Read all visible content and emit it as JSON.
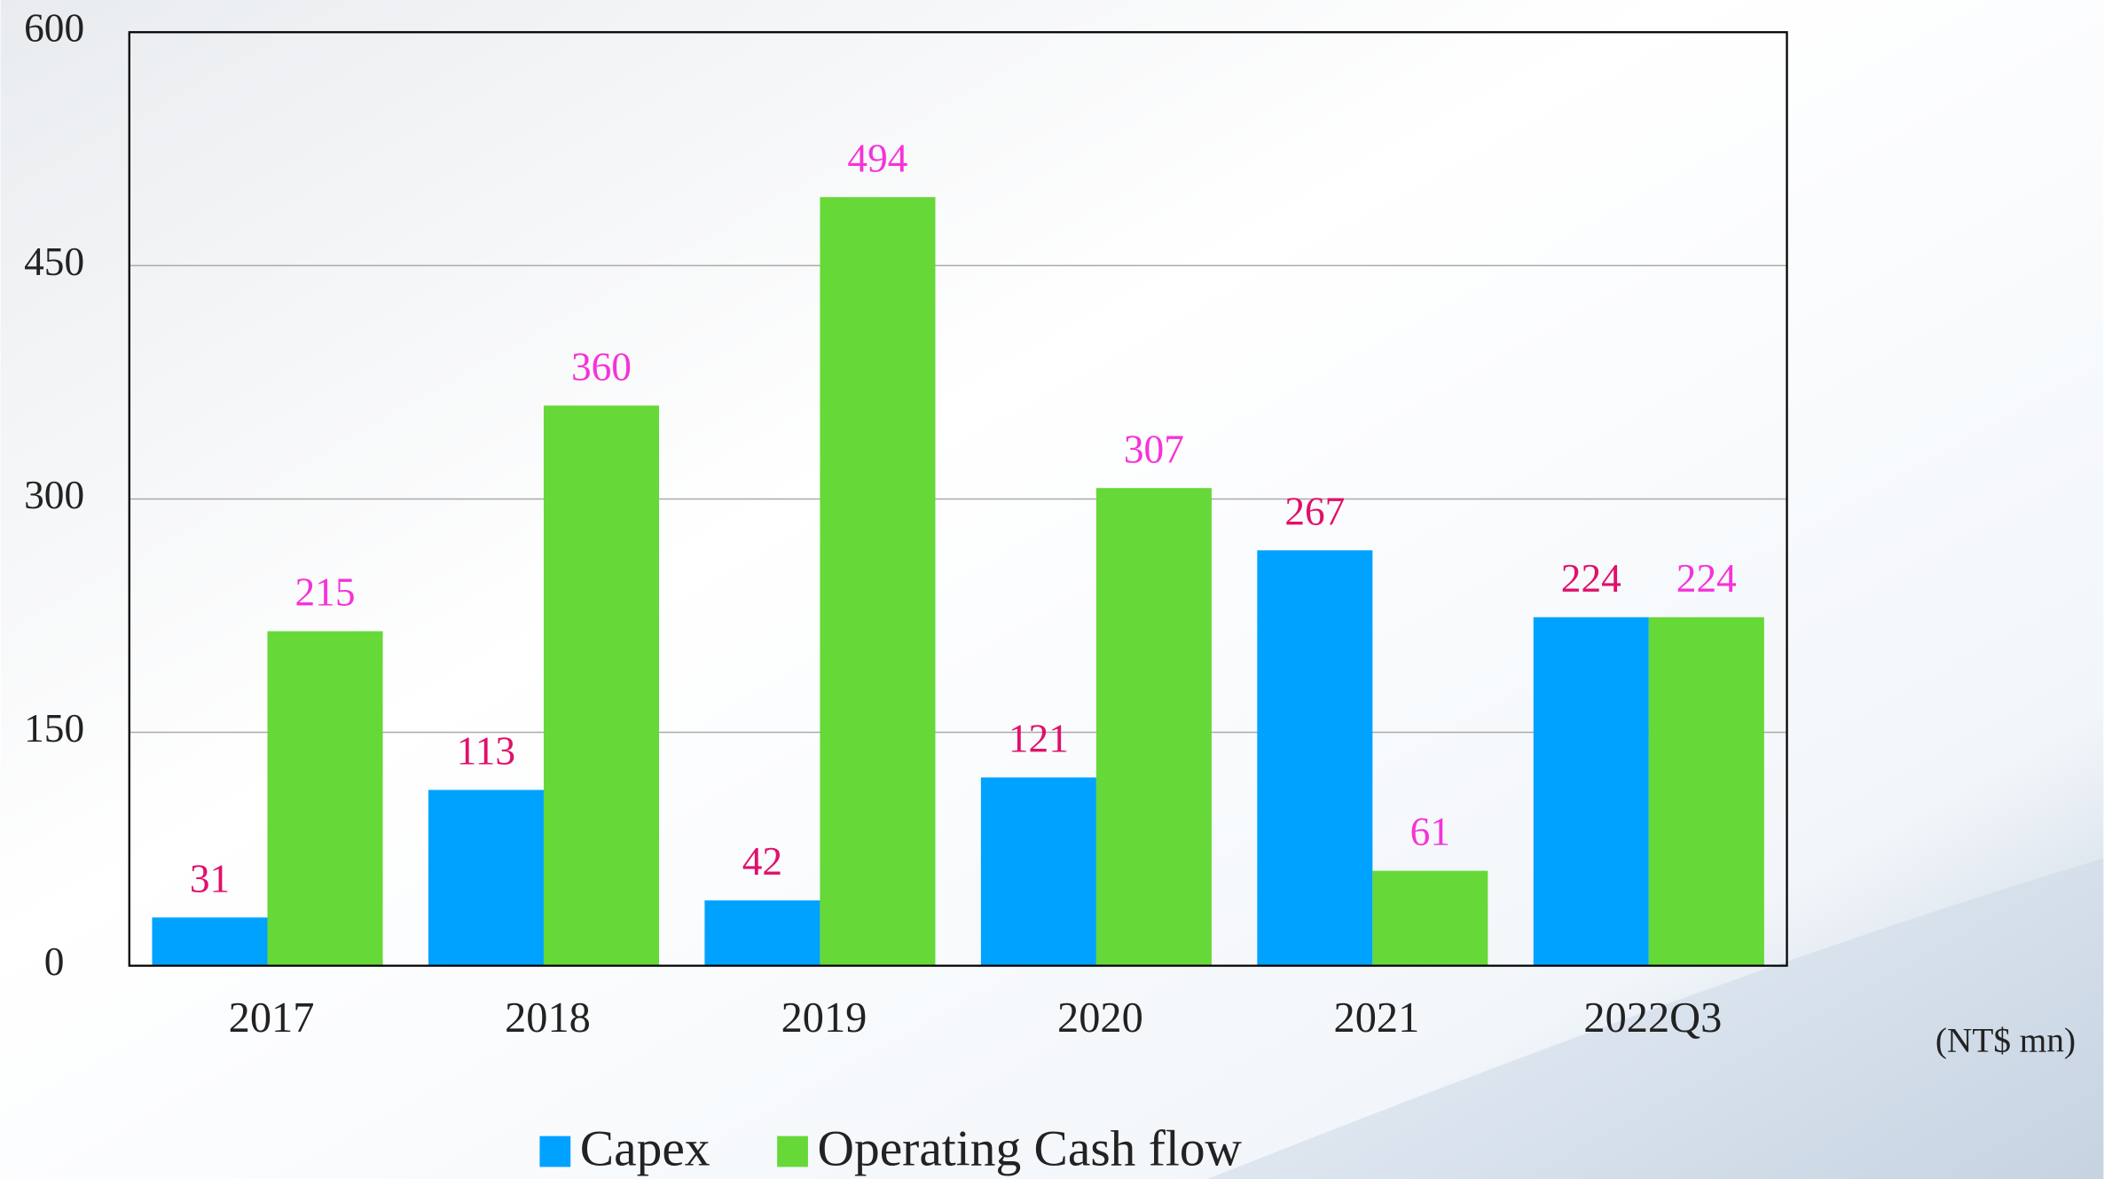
{
  "chart_data": {
    "type": "bar",
    "categories": [
      "2017",
      "2018",
      "2019",
      "2020",
      "2021",
      "2022Q3"
    ],
    "series": [
      {
        "name": "Capex",
        "color": "#00a2ff",
        "label_color": "#e0106a",
        "values": [
          31,
          113,
          42,
          121,
          267,
          224
        ]
      },
      {
        "name": "Operating Cash flow",
        "color": "#66d838",
        "label_color": "#f533d8",
        "values": [
          215,
          360,
          494,
          307,
          61,
          224
        ]
      }
    ],
    "ylim": [
      0,
      600
    ],
    "yticks": [
      0,
      150,
      300,
      450,
      600
    ],
    "grid": true,
    "unit_note": "(NT$ mn)",
    "legend": "bottom"
  }
}
